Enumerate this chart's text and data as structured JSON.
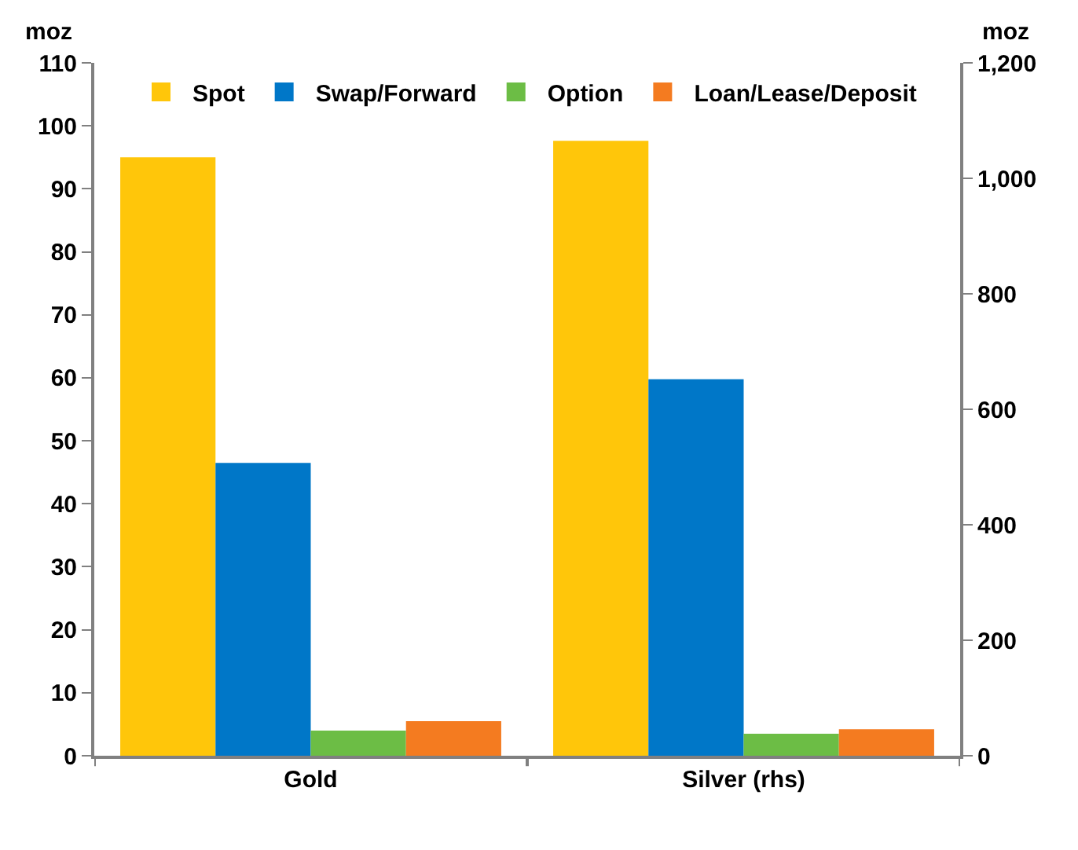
{
  "chart_data": {
    "type": "bar",
    "categories": [
      "Gold",
      "Silver (rhs)"
    ],
    "ylabel": "moz",
    "y2label": "moz",
    "series": [
      {
        "name": "Spot",
        "color": "#ffc60a",
        "values": [
          95,
          null
        ],
        "axis": "y"
      },
      {
        "name": "Swap/Forward",
        "color": "#0077c8",
        "values": [
          46.5,
          null
        ],
        "axis": "y"
      },
      {
        "name": "Option",
        "color": "#6cbd45",
        "values": [
          4,
          null
        ],
        "axis": "y"
      },
      {
        "name": "Loan/Lease/Deposit",
        "color": "#f47b20",
        "values": [
          5.5,
          null
        ],
        "axis": "y"
      },
      {
        "color": "#ffc60a",
        "values": [
          null,
          1065
        ],
        "axis": "y2"
      },
      {
        "color": "#0077c8",
        "values": [
          null,
          652
        ],
        "axis": "y2"
      },
      {
        "color": "#6cbd45",
        "values": [
          null,
          38
        ],
        "axis": "y2"
      },
      {
        "color": "#f47b20",
        "values": [
          null,
          46
        ],
        "axis": "y2"
      }
    ],
    "ylim": [
      0,
      110
    ],
    "yticks": [
      0,
      10,
      20,
      30,
      40,
      50,
      60,
      70,
      80,
      90,
      100,
      110
    ],
    "y2lim": [
      0,
      1200
    ],
    "y2ticks": [
      0,
      200,
      400,
      600,
      800,
      {
        "value": 1000,
        "label": "1,000"
      },
      {
        "value": 1200,
        "label": "1,200"
      }
    ],
    "legend": "top"
  }
}
